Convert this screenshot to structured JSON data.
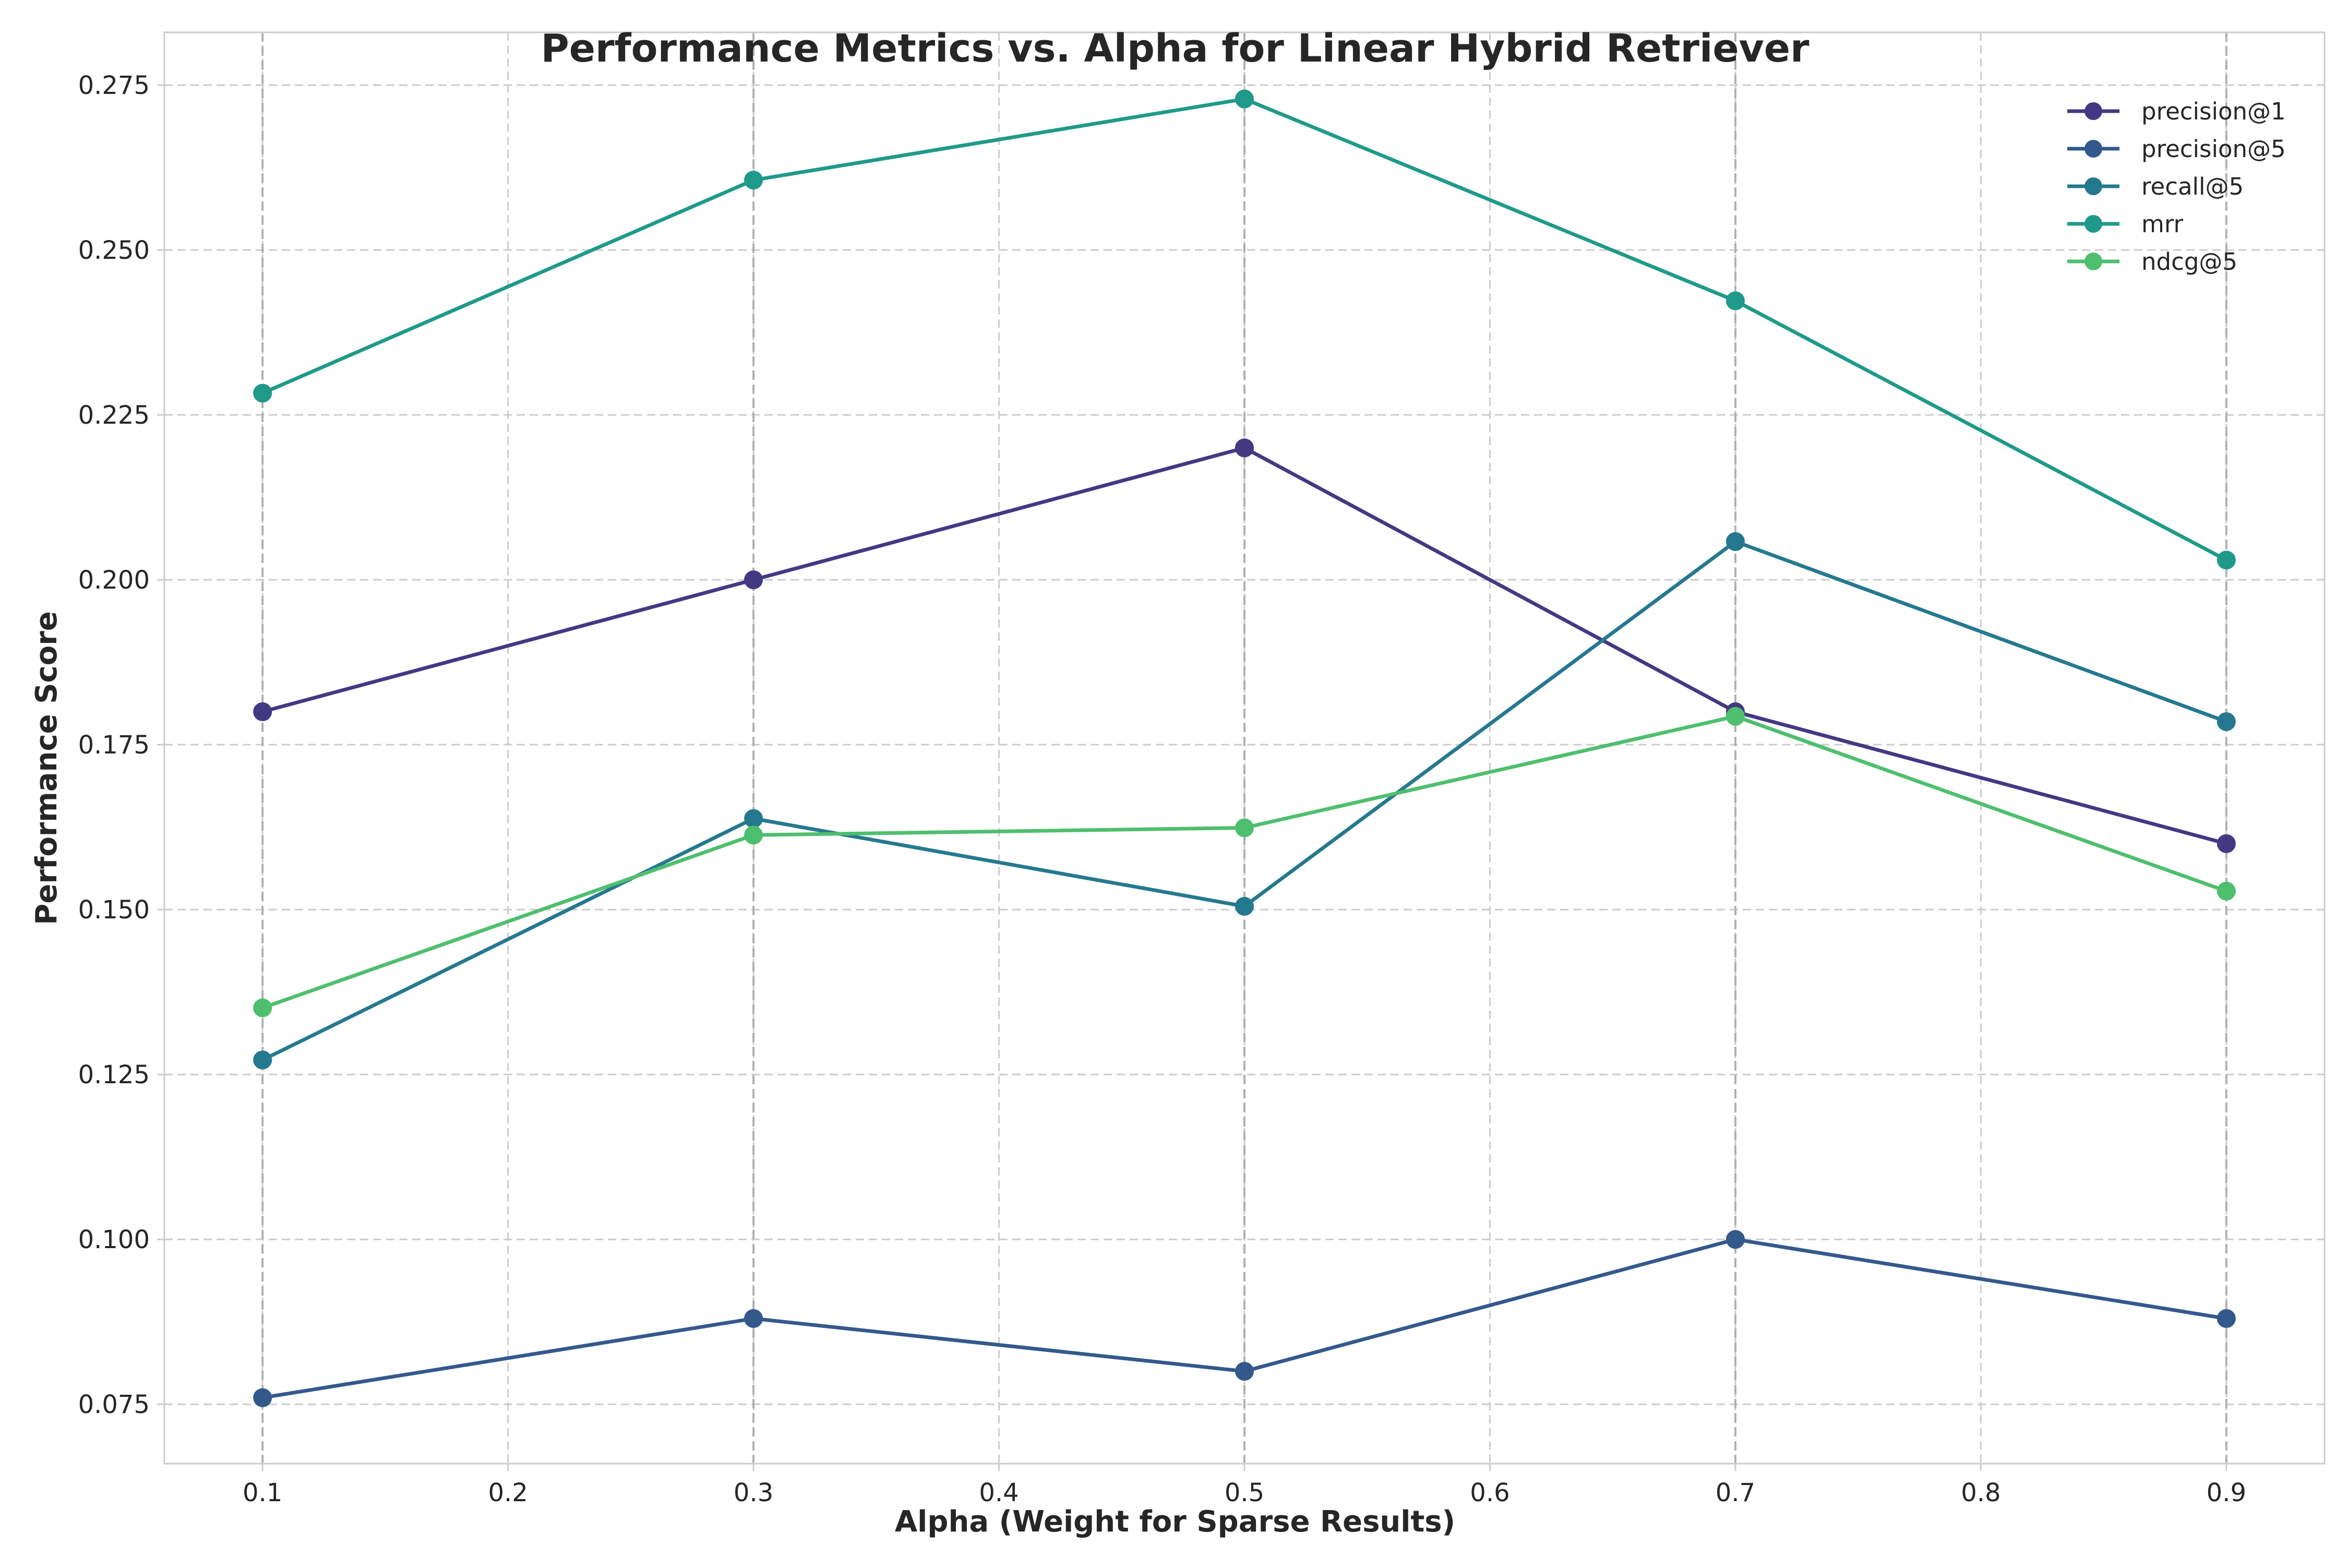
{
  "chart_data": {
    "type": "line",
    "title": "Performance Metrics vs. Alpha for Linear Hybrid Retriever",
    "xlabel": "Alpha (Weight for Sparse Results)",
    "ylabel": "Performance Score",
    "x": [
      0.1,
      0.3,
      0.5,
      0.7,
      0.9
    ],
    "xlim": [
      0.06,
      0.94
    ],
    "ylim": [
      0.066,
      0.283
    ],
    "xticks": [
      "0.1",
      "0.2",
      "0.3",
      "0.4",
      "0.5",
      "0.6",
      "0.7",
      "0.8",
      "0.9"
    ],
    "yticks": [
      "0.075",
      "0.100",
      "0.125",
      "0.150",
      "0.175",
      "0.200",
      "0.225",
      "0.250",
      "0.275"
    ],
    "vertical_reference_lines": [
      0.1,
      0.3,
      0.5,
      0.7,
      0.9
    ],
    "grid": true,
    "legend_position": "top-right",
    "series": [
      {
        "name": "precision@1",
        "color": "#433983",
        "values": [
          0.18,
          0.2,
          0.22,
          0.18,
          0.16
        ]
      },
      {
        "name": "precision@5",
        "color": "#33598c",
        "values": [
          0.076,
          0.088,
          0.08,
          0.1,
          0.088
        ]
      },
      {
        "name": "recall@5",
        "color": "#25798e",
        "values": [
          0.1272,
          0.1638,
          0.1505,
          0.2058,
          0.1785
        ]
      },
      {
        "name": "mrr",
        "color": "#1f9a8a",
        "values": [
          0.2283,
          0.2606,
          0.2729,
          0.2423,
          0.203
        ]
      },
      {
        "name": "ndcg@5",
        "color": "#4ebf6e",
        "values": [
          0.1351,
          0.1613,
          0.1624,
          0.1793,
          0.1528
        ]
      }
    ]
  }
}
